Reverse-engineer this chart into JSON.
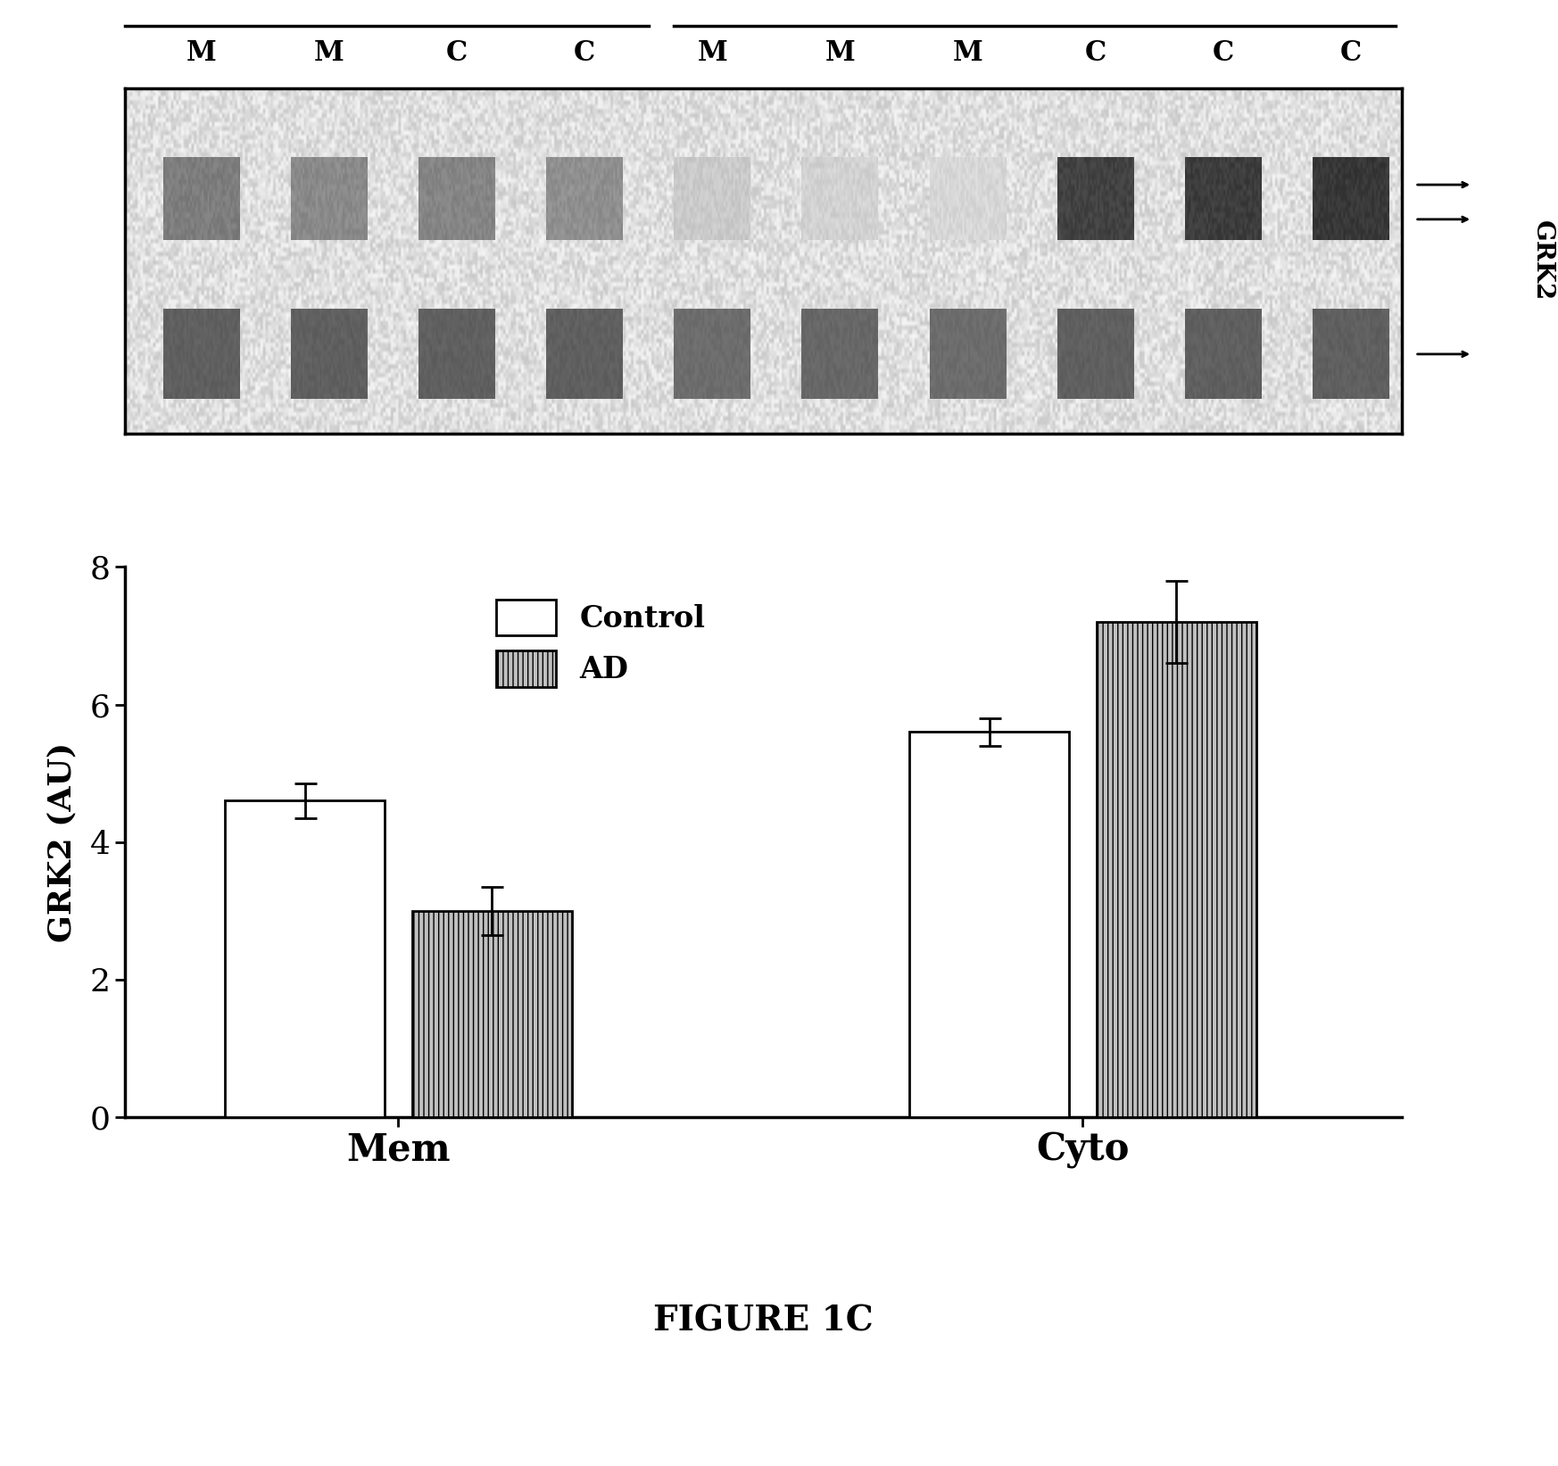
{
  "title": "FIGURE 1C",
  "blot_label_control": "Control",
  "blot_label_ad": "AD",
  "lane_labels": [
    "M",
    "M",
    "C",
    "C",
    "M",
    "M",
    "M",
    "C",
    "C",
    "C"
  ],
  "grk2_label": "GRK2",
  "ylabel": "GRK2 (AU)",
  "bar_groups": [
    "Mem",
    "Cyto"
  ],
  "control_values": [
    4.6,
    5.6
  ],
  "ad_values": [
    3.0,
    7.2
  ],
  "control_errors": [
    0.25,
    0.2
  ],
  "ad_errors": [
    0.35,
    0.6
  ],
  "ylim": [
    0,
    8
  ],
  "yticks": [
    0,
    2,
    4,
    6,
    8
  ],
  "bar_width": 0.35,
  "control_color": "#ffffff",
  "ad_facecolor": "#c0c0c0",
  "background_color": "#ffffff",
  "fig_width": 17.46,
  "fig_height": 16.43
}
